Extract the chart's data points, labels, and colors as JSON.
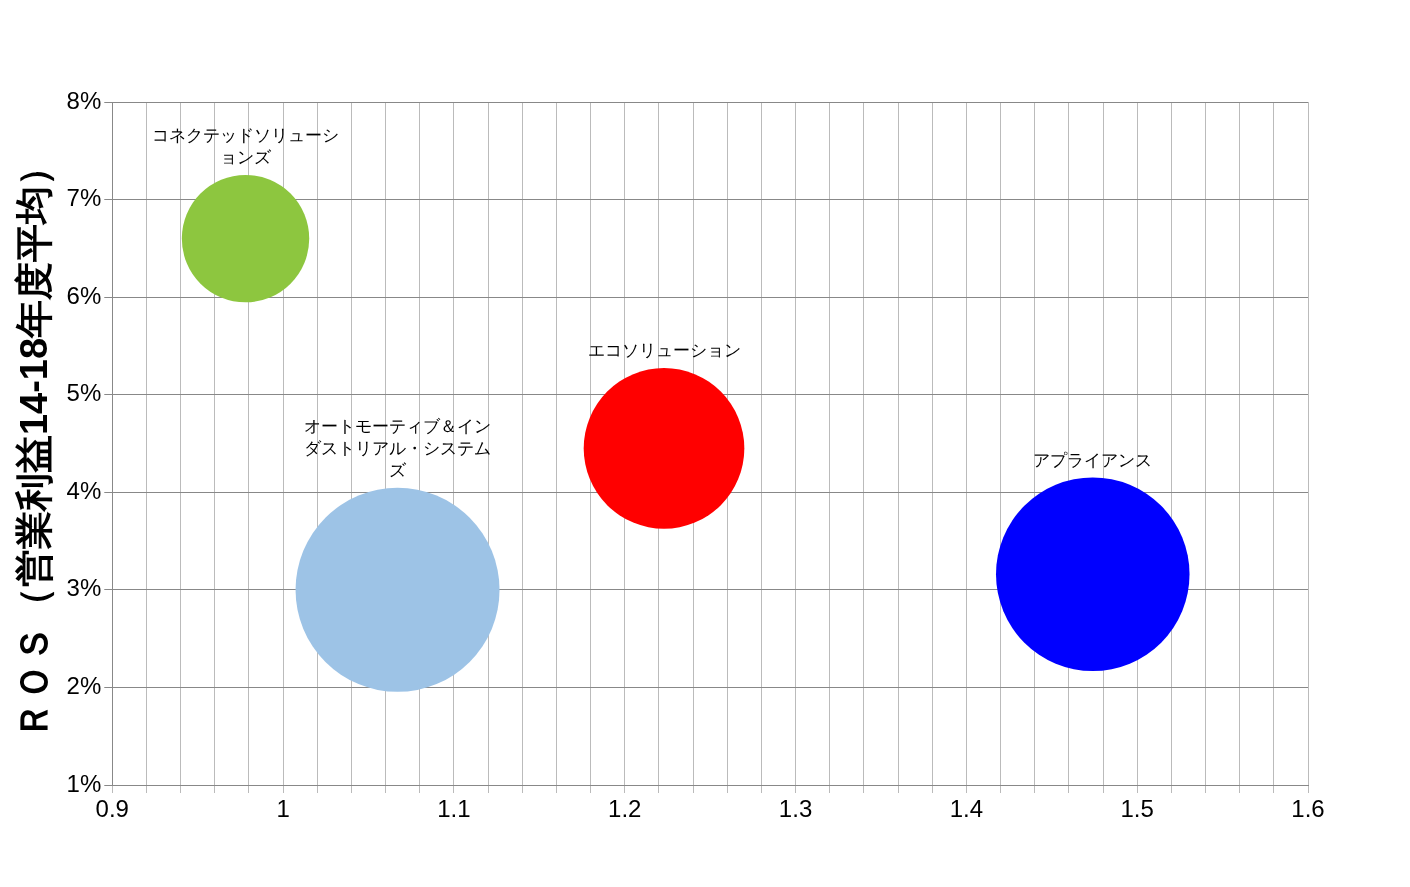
{
  "chart_data": {
    "type": "bubble",
    "ylabel": "ＲＯＳ（営業利益14-18年度平均）",
    "xlim": [
      0.9,
      1.6
    ],
    "xticks": [
      0.9,
      {
        "value": 0.92,
        "label": null
      },
      {
        "value": 0.94,
        "label": null
      },
      {
        "value": 0.96,
        "label": null
      },
      {
        "value": 0.98,
        "label": null
      },
      1,
      {
        "value": 1.02,
        "label": null
      },
      {
        "value": 1.04,
        "label": null
      },
      {
        "value": 1.06,
        "label": null
      },
      {
        "value": 1.08,
        "label": null
      },
      1.1,
      {
        "value": 1.12,
        "label": null
      },
      {
        "value": 1.14,
        "label": null
      },
      {
        "value": 1.16,
        "label": null
      },
      {
        "value": 1.18,
        "label": null
      },
      1.2,
      {
        "value": 1.22,
        "label": null
      },
      {
        "value": 1.24,
        "label": null
      },
      {
        "value": 1.26,
        "label": null
      },
      {
        "value": 1.28,
        "label": null
      },
      1.3,
      {
        "value": 1.32,
        "label": null
      },
      {
        "value": 1.34,
        "label": null
      },
      {
        "value": 1.36,
        "label": null
      },
      {
        "value": 1.38,
        "label": null
      },
      1.4,
      {
        "value": 1.42,
        "label": null
      },
      {
        "value": 1.44,
        "label": null
      },
      {
        "value": 1.46,
        "label": null
      },
      {
        "value": 1.48,
        "label": null
      },
      1.5,
      {
        "value": 1.52,
        "label": null
      },
      {
        "value": 1.54,
        "label": null
      },
      {
        "value": 1.56,
        "label": null
      },
      {
        "value": 1.58,
        "label": null
      },
      1.6
    ],
    "ylim": [
      1,
      8
    ],
    "yticks": [
      {
        "value": 1,
        "label": "1%"
      },
      {
        "value": 2,
        "label": "2%"
      },
      {
        "value": 3,
        "label": "3%"
      },
      {
        "value": 4,
        "label": "4%"
      },
      {
        "value": 5,
        "label": "5%"
      },
      {
        "value": 6,
        "label": "6%"
      },
      {
        "value": 7,
        "label": "7%"
      },
      {
        "value": 8,
        "label": "8%"
      }
    ],
    "grid": true,
    "series": [
      {
        "name": "コネクテッドソリューションズ",
        "color": "#8dc63f",
        "x": [
          0.978
        ],
        "values": [
          6.6
        ],
        "sizes": [
          0.39
        ]
      },
      {
        "name": "オートモーティブ＆インダストリアル・システムズ",
        "color": "#9dc3e6",
        "x": [
          1.067
        ],
        "values": [
          3.0
        ],
        "sizes": [
          1
        ]
      },
      {
        "name": "エコソリューション",
        "color": "#ff0000",
        "x": [
          1.223
        ],
        "values": [
          4.45
        ],
        "sizes": [
          0.62
        ]
      },
      {
        "name": "アプライアンス",
        "color": "#0000ff",
        "x": [
          1.474
        ],
        "values": [
          3.16
        ],
        "sizes": [
          0.9
        ]
      }
    ]
  }
}
